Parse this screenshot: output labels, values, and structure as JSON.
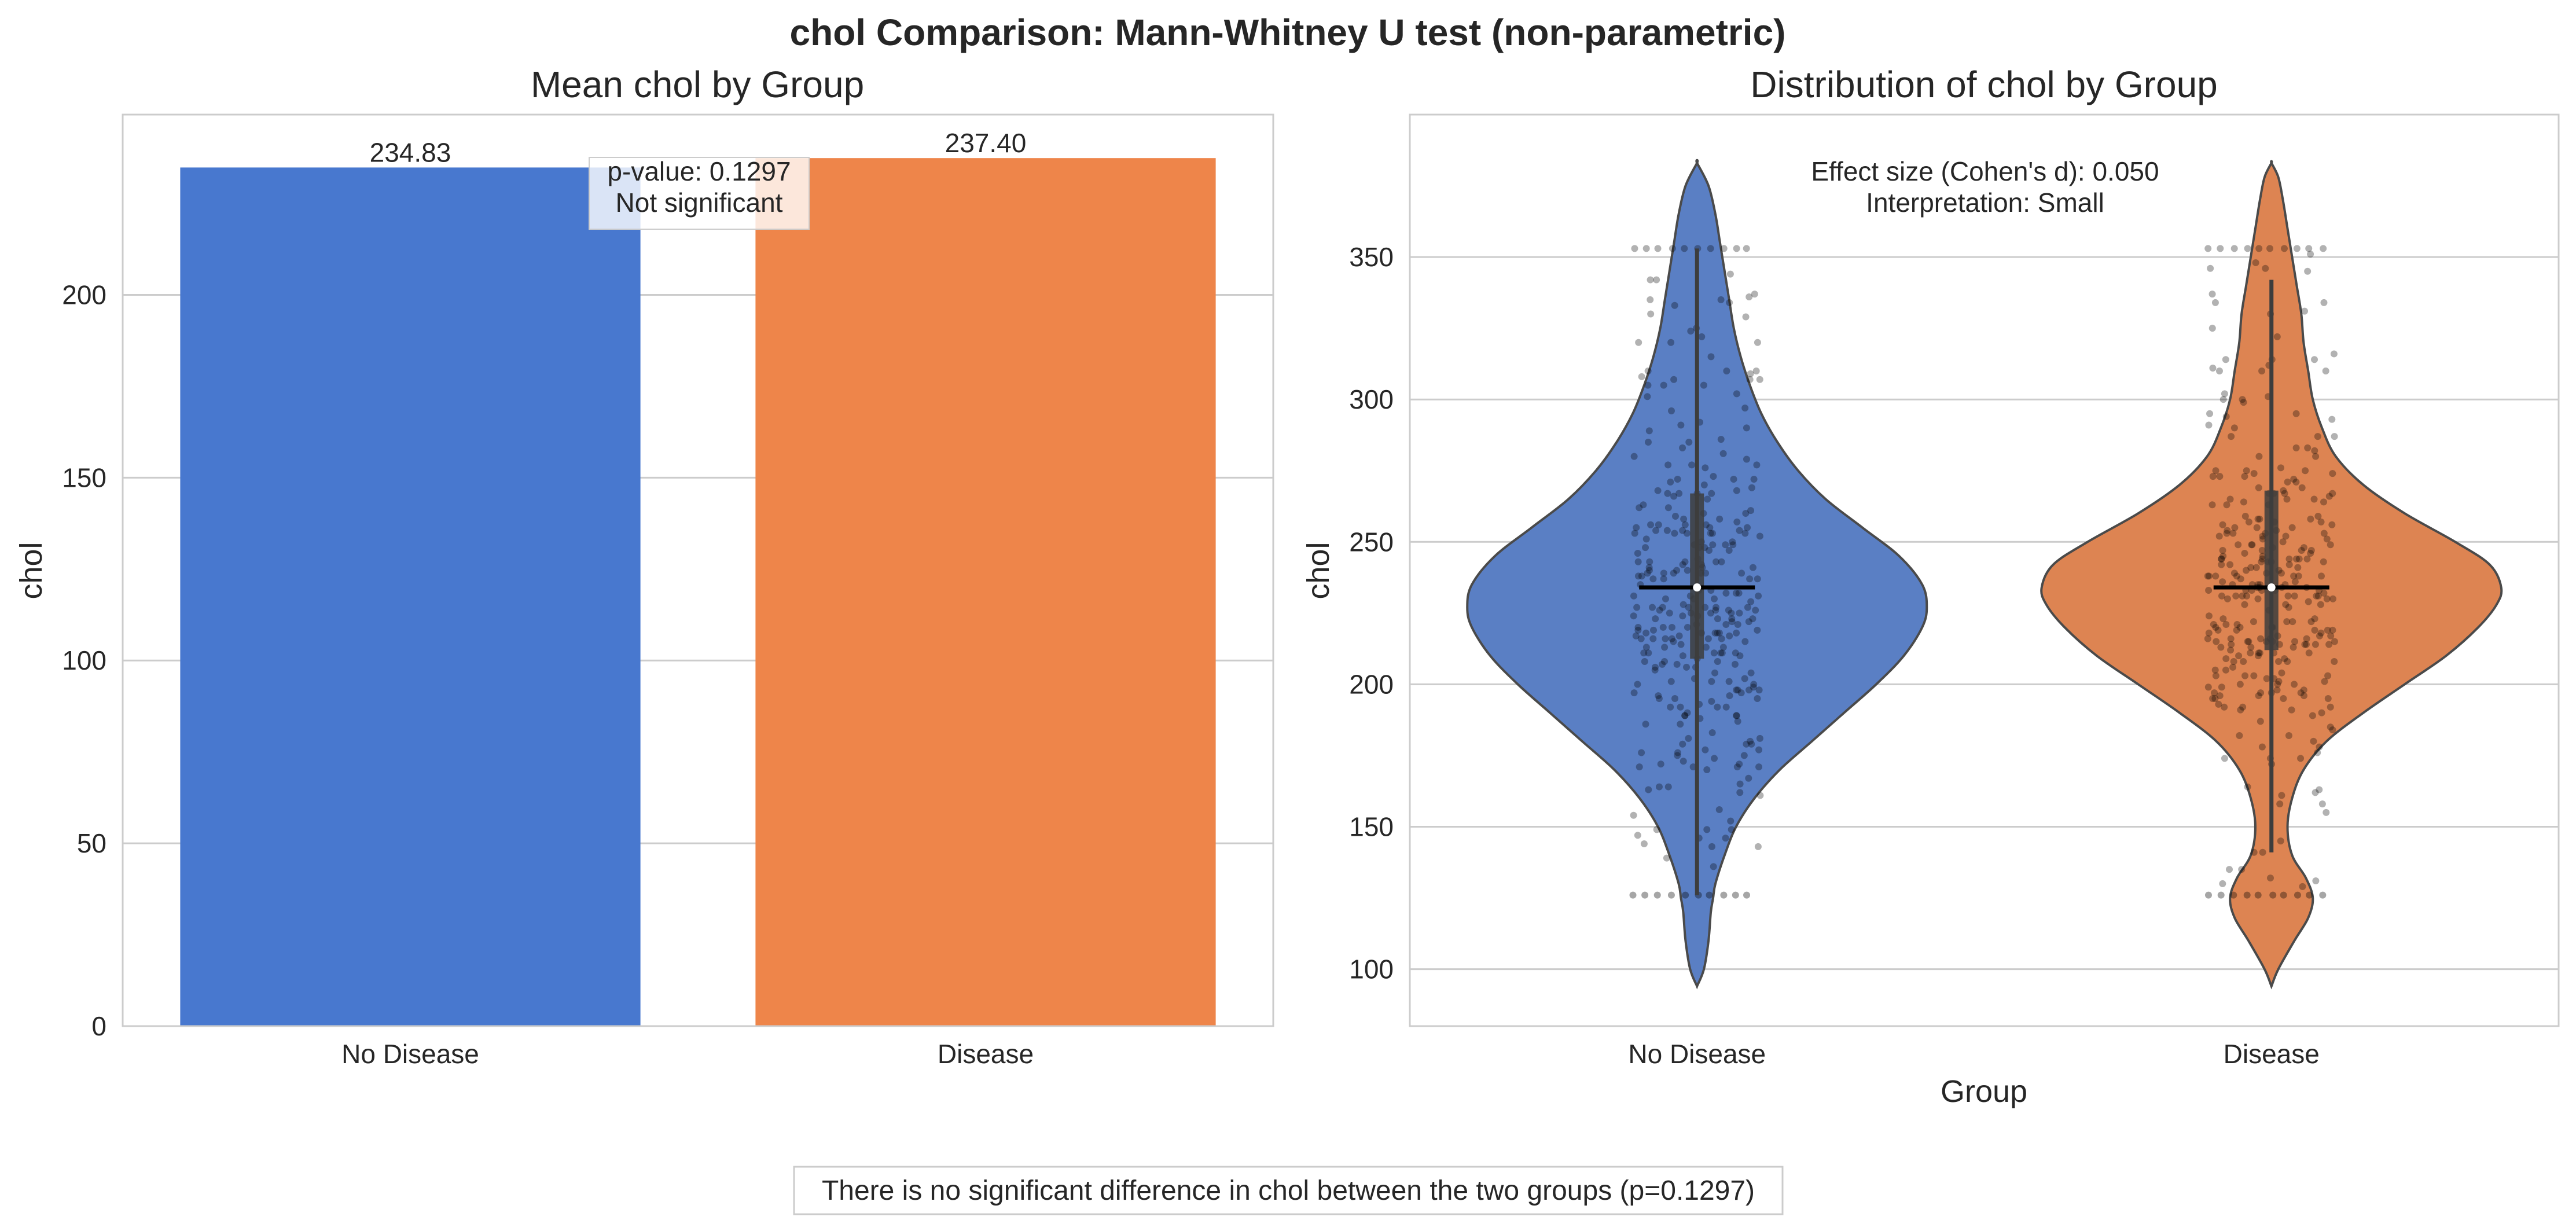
{
  "suptitle": "chol Comparison: Mann-Whitney U test (non-parametric)",
  "footer_text": "There is no significant difference in chol between the two groups (p=0.1297)",
  "colors": {
    "no_disease": "#4878cf",
    "disease": "#ee854a",
    "no_disease_violin": "#5a7fc4",
    "disease_violin": "#dd8452",
    "grid": "#cccccc"
  },
  "chart_data": [
    {
      "type": "bar",
      "title": "Mean chol by Group",
      "xlabel": "",
      "ylabel": "chol",
      "categories": [
        "No Disease",
        "Disease"
      ],
      "values": [
        234.83,
        237.4
      ],
      "value_labels": [
        "234.83",
        "237.40"
      ],
      "ylim": [
        0,
        249.3
      ],
      "yticks": [
        0,
        50,
        100,
        150,
        200
      ],
      "ytick_labels": [
        "0",
        "50",
        "100",
        "150",
        "200"
      ],
      "grid": true,
      "annotation": {
        "line1": "p-value: 0.1297",
        "line2": "Not significant"
      }
    },
    {
      "type": "violin",
      "title": "Distribution of chol by Group",
      "xlabel": "Group",
      "ylabel": "chol",
      "categories": [
        "No Disease",
        "Disease"
      ],
      "ylim": [
        80,
        400
      ],
      "yticks": [
        100,
        150,
        200,
        250,
        300,
        350
      ],
      "ytick_labels": [
        "100",
        "150",
        "200",
        "250",
        "300",
        "350"
      ],
      "grid": true,
      "annotation": {
        "line1": "Effect size (Cohen's d): 0.050",
        "line2": "Interpretation: Small"
      },
      "series": [
        {
          "name": "No Disease",
          "min": 126,
          "max": 353,
          "median": 234,
          "q1": 209,
          "q3": 267,
          "whisker_low": 126,
          "whisker_high": 353,
          "density": [
            [
              94,
              0.0
            ],
            [
              100,
              0.03
            ],
            [
              110,
              0.05
            ],
            [
              120,
              0.06
            ],
            [
              125,
              0.07
            ],
            [
              130,
              0.08
            ],
            [
              140,
              0.12
            ],
            [
              150,
              0.17
            ],
            [
              160,
              0.25
            ],
            [
              170,
              0.36
            ],
            [
              180,
              0.5
            ],
            [
              190,
              0.64
            ],
            [
              200,
              0.78
            ],
            [
              210,
              0.9
            ],
            [
              220,
              0.98
            ],
            [
              227,
              1.0
            ],
            [
              235,
              0.98
            ],
            [
              245,
              0.88
            ],
            [
              255,
              0.72
            ],
            [
              265,
              0.56
            ],
            [
              275,
              0.44
            ],
            [
              285,
              0.35
            ],
            [
              295,
              0.28
            ],
            [
              305,
              0.23
            ],
            [
              315,
              0.19
            ],
            [
              325,
              0.16
            ],
            [
              335,
              0.14
            ],
            [
              345,
              0.12
            ],
            [
              355,
              0.1
            ],
            [
              365,
              0.08
            ],
            [
              375,
              0.05
            ],
            [
              383,
              0.0
            ]
          ]
        },
        {
          "name": "Disease",
          "min": 126,
          "max": 353,
          "median": 234,
          "q1": 212,
          "q3": 268,
          "whisker_low": 141,
          "whisker_high": 342,
          "density": [
            [
              94,
              0.0
            ],
            [
              100,
              0.03
            ],
            [
              110,
              0.1
            ],
            [
              118,
              0.16
            ],
            [
              125,
              0.18
            ],
            [
              132,
              0.15
            ],
            [
              140,
              0.09
            ],
            [
              150,
              0.07
            ],
            [
              160,
              0.09
            ],
            [
              170,
              0.14
            ],
            [
              180,
              0.24
            ],
            [
              190,
              0.4
            ],
            [
              200,
              0.58
            ],
            [
              210,
              0.76
            ],
            [
              220,
              0.9
            ],
            [
              228,
              0.98
            ],
            [
              234,
              1.0
            ],
            [
              242,
              0.95
            ],
            [
              250,
              0.8
            ],
            [
              260,
              0.58
            ],
            [
              270,
              0.4
            ],
            [
              280,
              0.28
            ],
            [
              290,
              0.22
            ],
            [
              300,
              0.18
            ],
            [
              310,
              0.16
            ],
            [
              320,
              0.14
            ],
            [
              330,
              0.13
            ],
            [
              340,
              0.11
            ],
            [
              350,
              0.09
            ],
            [
              360,
              0.07
            ],
            [
              370,
              0.05
            ],
            [
              378,
              0.03
            ],
            [
              383,
              0.0
            ]
          ]
        }
      ]
    }
  ]
}
